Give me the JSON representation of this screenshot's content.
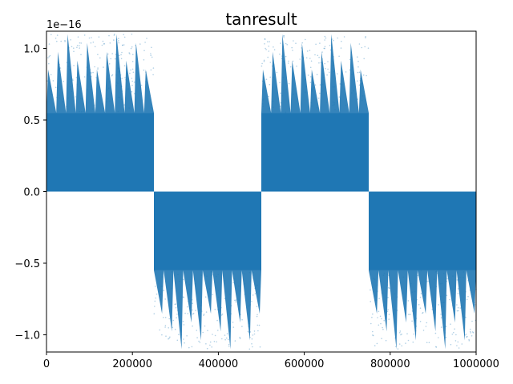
{
  "chart_data": {
    "type": "scatter",
    "title": "tanresult",
    "xlabel": "",
    "ylabel": "",
    "y_offset_label": "1e−16",
    "xlim": [
      0,
      1000000
    ],
    "ylim": [
      -1.12,
      1.12
    ],
    "y_scale_factor": 1e-16,
    "x_ticks": [
      0,
      200000,
      400000,
      600000,
      800000,
      1000000
    ],
    "x_tick_labels": [
      "0",
      "200000",
      "400000",
      "600000",
      "800000",
      "1000000"
    ],
    "y_ticks": [
      -1.0,
      -0.5,
      0.0,
      0.5,
      1.0
    ],
    "y_tick_labels": [
      "−1.0",
      "−0.5",
      "0.0",
      "0.5",
      "1.0"
    ],
    "marker_color": "#1f77b4",
    "grid": false,
    "segments": [
      {
        "x_start": 0,
        "x_end": 250000,
        "sign": 1,
        "y_fill_to": 0.55,
        "y_peak": 1.1
      },
      {
        "x_start": 250000,
        "x_end": 500000,
        "sign": -1,
        "y_fill_to": -0.55,
        "y_peak": -1.1
      },
      {
        "x_start": 500000,
        "x_end": 750000,
        "sign": 1,
        "y_fill_to": 0.55,
        "y_peak": 1.1
      },
      {
        "x_start": 750000,
        "x_end": 1000000,
        "sign": -1,
        "y_fill_to": -0.55,
        "y_peak": -1.1
      }
    ]
  }
}
